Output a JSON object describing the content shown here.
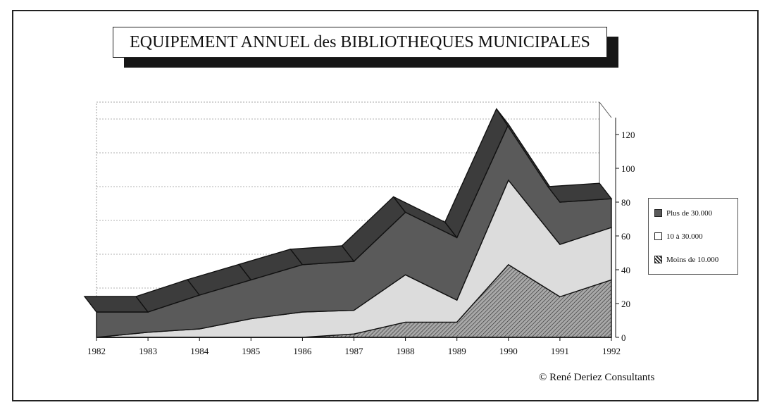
{
  "chart_data": {
    "type": "area",
    "stacked": true,
    "three_d": true,
    "title": "EQUIPEMENT ANNUEL des BIBLIOTHEQUES MUNICIPALES",
    "categories": [
      "1982",
      "1983",
      "1984",
      "1985",
      "1986",
      "1987",
      "1988",
      "1989",
      "1990",
      "1991",
      "1992"
    ],
    "y_ticks": [
      "0",
      "20",
      "40",
      "60",
      "80",
      "100",
      "120"
    ],
    "ylim": [
      0,
      130
    ],
    "y_axis_side": "right",
    "grid": true,
    "legend_position": "right",
    "series": [
      {
        "name": "Moins de 10.000",
        "values": [
          0,
          0,
          0,
          0,
          0,
          2,
          9,
          9,
          43,
          24,
          34
        ],
        "color": "#9a9a9a",
        "pattern": "hatch"
      },
      {
        "name": "10 à 30.000",
        "values": [
          0,
          3,
          5,
          11,
          15,
          14,
          28,
          13,
          50,
          31,
          31
        ],
        "color": "#dcdcdc"
      },
      {
        "name": "Plus de 30.000",
        "values": [
          15,
          12,
          20,
          23,
          28,
          29,
          37,
          37,
          33,
          25,
          17
        ],
        "color": "#5a5a5a"
      }
    ]
  },
  "legend_items": [
    {
      "label": "Plus de 30.000"
    },
    {
      "label": "10 à 30.000"
    },
    {
      "label": "Moins de 10.000"
    }
  ],
  "credit": "©  René Deriez Consultants"
}
